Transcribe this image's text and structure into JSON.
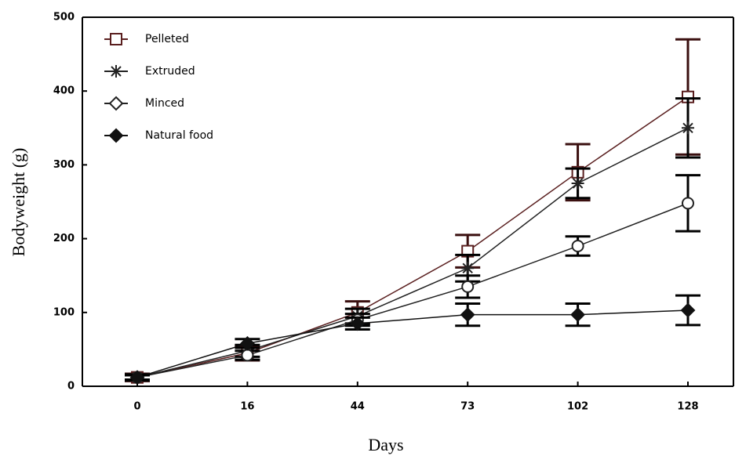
{
  "chart_data": {
    "type": "line",
    "x_label": "Days",
    "y_label": "Bodyweight (g)",
    "categories": [
      "0",
      "16",
      "44",
      "73",
      "102",
      "128"
    ],
    "ylim": [
      0,
      500
    ],
    "yticks": [
      0,
      100,
      200,
      300,
      400,
      500
    ],
    "legend": "top-left",
    "series": [
      {
        "name": "Pelleted",
        "color": "#5a1f1f",
        "marker": "square",
        "values": [
          12,
          45,
          100,
          183,
          290,
          392
        ],
        "errors": [
          5,
          10,
          15,
          22,
          38,
          78
        ]
      },
      {
        "name": "Extruded",
        "color": "#222222",
        "marker": "star",
        "values": [
          12,
          48,
          95,
          160,
          275,
          350
        ],
        "errors": [
          4,
          8,
          10,
          18,
          20,
          40
        ]
      },
      {
        "name": "Minced",
        "color": "#222222",
        "marker": "circle",
        "values": [
          12,
          42,
          90,
          135,
          190,
          248
        ],
        "errors": [
          3,
          6,
          8,
          15,
          13,
          38
        ]
      },
      {
        "name": "Natural food",
        "color": "#111111",
        "marker": "diamond",
        "values": [
          12,
          58,
          85,
          97,
          97,
          103
        ],
        "errors": [
          3,
          6,
          8,
          15,
          15,
          20
        ]
      }
    ]
  }
}
